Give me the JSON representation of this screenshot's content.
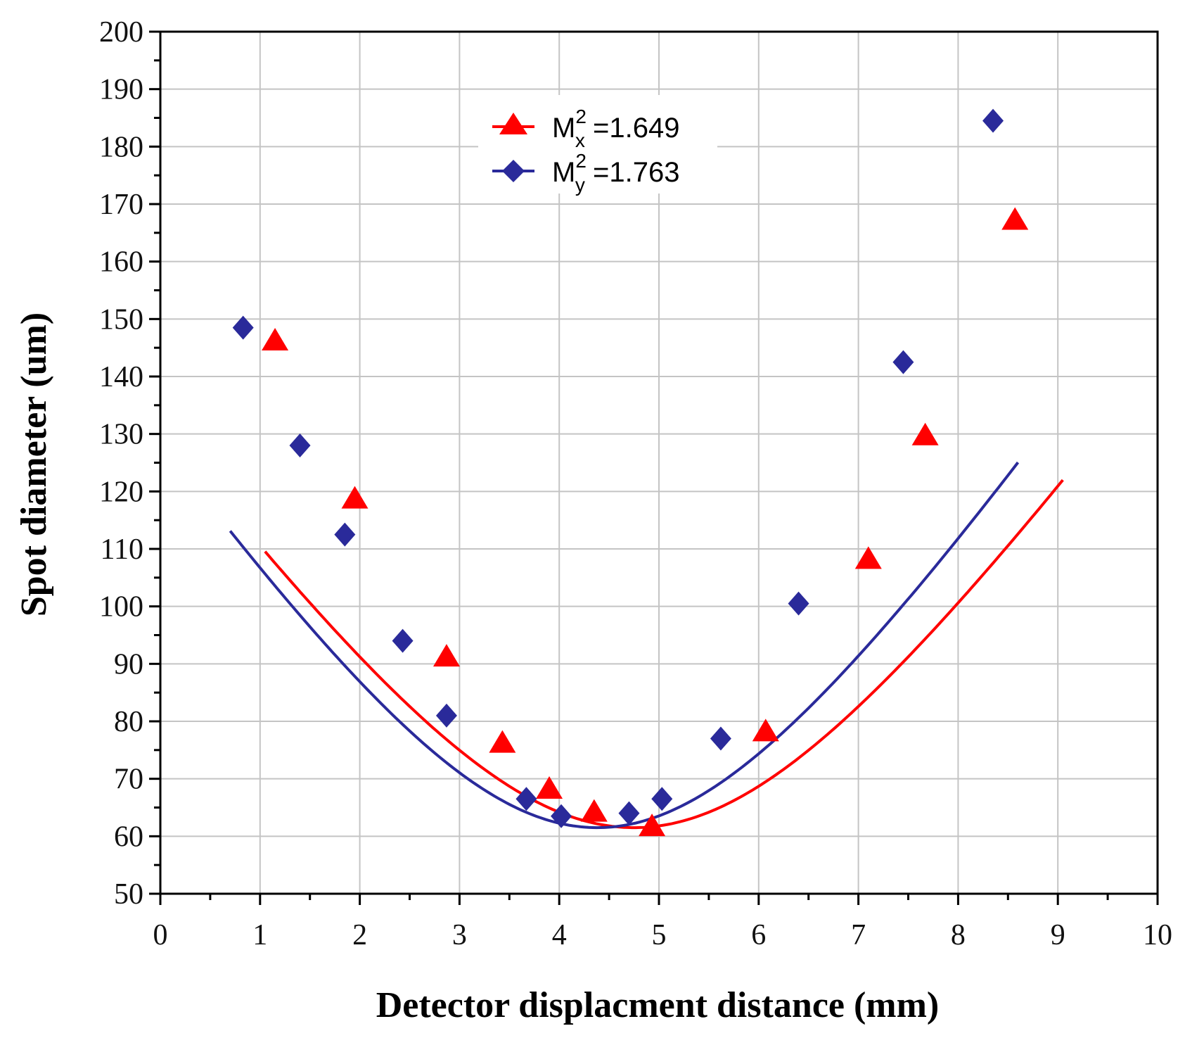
{
  "chart_data": {
    "type": "line",
    "title": "",
    "xlabel": "Detector displacment distance (mm)",
    "ylabel": "Spot diameter (um)",
    "xlim": [
      0,
      10
    ],
    "ylim": [
      50,
      200
    ],
    "xticks": [
      "0",
      "1",
      "2",
      "3",
      "4",
      "5",
      "6",
      "7",
      "8",
      "9",
      "10"
    ],
    "yticks": [
      "50",
      "60",
      "70",
      "80",
      "90",
      "100",
      "110",
      "120",
      "130",
      "140",
      "150",
      "160",
      "170",
      "180",
      "190",
      "200"
    ],
    "grid": true,
    "legend_position": "top-center",
    "series": [
      {
        "name": "M²x =1.649",
        "legend_base": "M",
        "legend_sup": "2",
        "legend_sub": "x",
        "legend_value": " =1.649",
        "color": "#ff0000",
        "marker": "triangle",
        "points": [
          [
            1.15,
            146
          ],
          [
            1.95,
            118.5
          ],
          [
            2.87,
            91
          ],
          [
            3.43,
            76
          ],
          [
            3.9,
            68
          ],
          [
            4.35,
            64
          ],
          [
            4.93,
            61.5
          ],
          [
            6.07,
            78
          ],
          [
            7.1,
            108
          ],
          [
            7.67,
            129.5
          ],
          [
            8.57,
            167
          ]
        ],
        "fit_range": [
          1.05,
          9.05
        ],
        "fit": {
          "d0": 61.5,
          "z0": 4.75,
          "k": 24.5
        }
      },
      {
        "name": "M²y =1.763",
        "legend_base": "M",
        "legend_sup": "2",
        "legend_sub": "y",
        "legend_value": " =1.763",
        "color": "#2a2a9a",
        "marker": "diamond",
        "points": [
          [
            0.83,
            148.5
          ],
          [
            1.4,
            128
          ],
          [
            1.85,
            112.5
          ],
          [
            2.43,
            94
          ],
          [
            2.87,
            81
          ],
          [
            3.67,
            66.5
          ],
          [
            4.02,
            63.5
          ],
          [
            4.7,
            64
          ],
          [
            5.03,
            66.5
          ],
          [
            5.62,
            77
          ],
          [
            6.4,
            100.5
          ],
          [
            7.45,
            142.5
          ],
          [
            8.35,
            184.5
          ]
        ],
        "fit_range": [
          0.7,
          8.6
        ],
        "fit": {
          "d0": 61.5,
          "z0": 4.38,
          "k": 25.8
        }
      }
    ]
  }
}
